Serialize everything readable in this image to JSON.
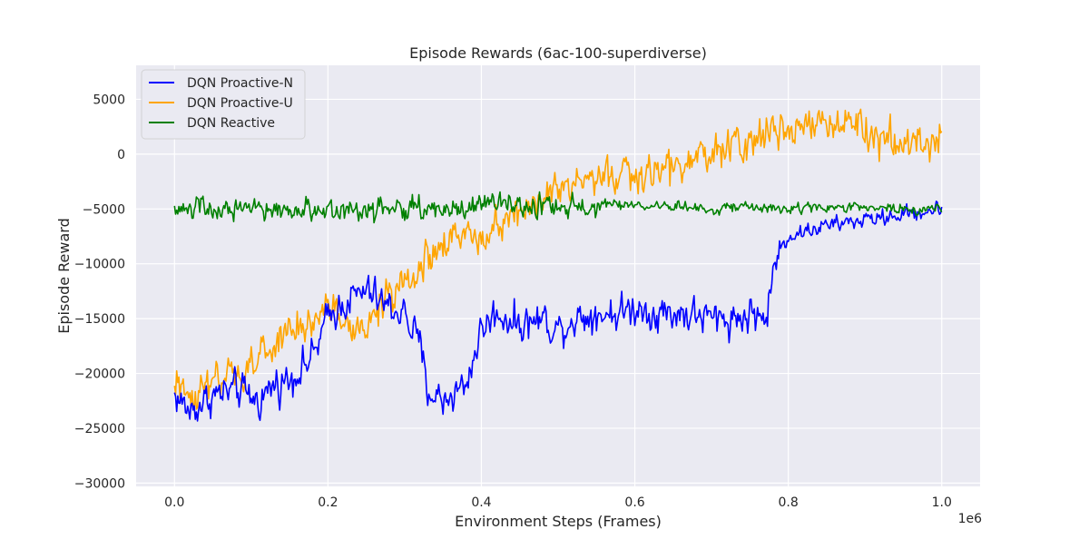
{
  "chart_data": {
    "type": "line",
    "title": "Episode Rewards (6ac-100-superdiverse)",
    "xlabel": "Environment Steps (Frames)",
    "ylabel": "Episode Reward",
    "x_offset_label": "1e6",
    "xlim": [
      -0.05,
      1.05
    ],
    "ylim": [
      -30300,
      8100
    ],
    "x_ticks": [
      0.0,
      0.2,
      0.4,
      0.6,
      0.8,
      1.0
    ],
    "x_tick_labels": [
      "0.0",
      "0.2",
      "0.4",
      "0.6",
      "0.8",
      "1.0"
    ],
    "y_ticks": [
      5000,
      0,
      -5000,
      -10000,
      -15000,
      -20000,
      -25000,
      -30000
    ],
    "y_tick_labels": [
      "5000",
      "0",
      "−5000",
      "−10000",
      "−15000",
      "−20000",
      "−25000",
      "−30000"
    ],
    "grid": true,
    "legend_position": "top-left",
    "background_color": "#eaeaf2",
    "grid_color": "#ffffff",
    "series": [
      {
        "name": "DQN Proactive-N",
        "color": "#0000ff",
        "noise": 2200,
        "x": [
          0.0,
          0.02,
          0.05,
          0.08,
          0.11,
          0.13,
          0.15,
          0.18,
          0.2,
          0.22,
          0.25,
          0.28,
          0.3,
          0.32,
          0.33,
          0.35,
          0.38,
          0.4,
          0.42,
          0.45,
          0.48,
          0.5,
          0.52,
          0.55,
          0.58,
          0.6,
          0.63,
          0.66,
          0.7,
          0.73,
          0.76,
          0.77,
          0.78,
          0.79,
          0.8,
          0.85,
          0.9,
          0.95,
          1.0
        ],
        "y": [
          -22000,
          -23500,
          -22000,
          -21500,
          -22500,
          -21000,
          -20500,
          -18500,
          -15000,
          -13500,
          -12500,
          -14000,
          -14500,
          -17500,
          -21500,
          -22500,
          -21000,
          -16000,
          -14500,
          -15500,
          -15000,
          -16000,
          -15000,
          -14500,
          -14500,
          -14000,
          -14500,
          -14500,
          -15000,
          -15000,
          -14500,
          -15500,
          -11000,
          -8500,
          -7500,
          -6500,
          -6000,
          -5500,
          -5000
        ]
      },
      {
        "name": "DQN Proactive-U",
        "color": "#ffa500",
        "noise": 2400,
        "x": [
          0.0,
          0.03,
          0.06,
          0.09,
          0.12,
          0.15,
          0.18,
          0.21,
          0.24,
          0.27,
          0.3,
          0.33,
          0.36,
          0.4,
          0.44,
          0.48,
          0.52,
          0.56,
          0.6,
          0.64,
          0.68,
          0.72,
          0.76,
          0.8,
          0.84,
          0.88,
          0.92,
          0.96,
          1.0
        ],
        "y": [
          -21500,
          -21500,
          -21000,
          -20000,
          -18000,
          -16500,
          -15000,
          -14000,
          -17000,
          -13500,
          -12000,
          -9500,
          -8000,
          -7000,
          -5500,
          -4000,
          -3000,
          -2000,
          -2000,
          -1500,
          -500,
          500,
          1500,
          2500,
          3000,
          2500,
          1500,
          1000,
          1000
        ]
      },
      {
        "name": "DQN Reactive",
        "color": "#008000",
        "noise": 1500,
        "x": [
          0.0,
          0.1,
          0.2,
          0.3,
          0.4,
          0.5,
          0.6,
          0.7,
          0.8,
          0.9,
          1.0
        ],
        "y": [
          -5000,
          -5200,
          -5000,
          -5000,
          -4800,
          -4700,
          -4700,
          -4900,
          -4900,
          -5000,
          -5000
        ]
      }
    ]
  }
}
